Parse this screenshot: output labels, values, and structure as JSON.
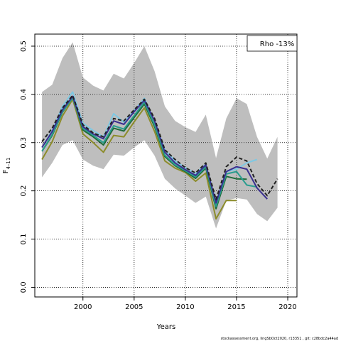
{
  "chart_data": {
    "type": "line",
    "xlabel": "Years",
    "ylabel_main": "F",
    "ylabel_sub": "4–11",
    "xlim": [
      1995.3,
      2020.9
    ],
    "ylim": [
      -0.02,
      0.525
    ],
    "xticks": [
      2000,
      2005,
      2010,
      2015,
      2020
    ],
    "yticks": [
      0.0,
      0.1,
      0.2,
      0.3,
      0.4,
      0.5
    ],
    "ytick_labels": [
      "0.0",
      "0.1",
      "0.2",
      "0.3",
      "0.4",
      "0.5"
    ],
    "grid": true,
    "grid_style": "dotted",
    "legend_placement": "top-right",
    "legend_text": "Rho -13%",
    "footer_text": "stockassessment.org, lingSbOct2020, r13351 , git: c28bdc2a44ad",
    "colors": {
      "band": "#bebebe",
      "full": "#222222",
      "peel1": "#3a2f8f",
      "peel2": "#2a9d8f",
      "peel3": "#1f6b3a",
      "peel4": "#8c8c2a",
      "peel5": "#7ec8e3"
    },
    "band": {
      "x": [
        1996,
        1997,
        1998,
        1999,
        2000,
        2001,
        2002,
        2003,
        2004,
        2005,
        2006,
        2007,
        2008,
        2009,
        2010,
        2011,
        2012,
        2013,
        2014,
        2015,
        2016,
        2017,
        2018,
        2019
      ],
      "upper": [
        0.405,
        0.42,
        0.475,
        0.508,
        0.435,
        0.418,
        0.408,
        0.443,
        0.433,
        0.465,
        0.5,
        0.448,
        0.375,
        0.345,
        0.332,
        0.322,
        0.358,
        0.268,
        0.35,
        0.392,
        0.38,
        0.312,
        0.267,
        0.312
      ],
      "lower": [
        0.228,
        0.258,
        0.295,
        0.305,
        0.265,
        0.252,
        0.245,
        0.275,
        0.273,
        0.29,
        0.305,
        0.273,
        0.225,
        0.205,
        0.19,
        0.175,
        0.188,
        0.122,
        0.18,
        0.185,
        0.182,
        0.152,
        0.137,
        0.165
      ]
    },
    "series": [
      {
        "key": "full",
        "style": "dashed",
        "x": [
          1996,
          1997,
          1998,
          1999,
          2000,
          2001,
          2002,
          2003,
          2004,
          2005,
          2006,
          2007,
          2008,
          2009,
          2010,
          2011,
          2012,
          2013,
          2014,
          2015,
          2016,
          2017,
          2018,
          2019
        ],
        "values": [
          0.302,
          0.33,
          0.372,
          0.398,
          0.337,
          0.32,
          0.312,
          0.35,
          0.345,
          0.368,
          0.39,
          0.35,
          0.285,
          0.265,
          0.248,
          0.237,
          0.258,
          0.182,
          0.25,
          0.27,
          0.262,
          0.215,
          0.19,
          0.225
        ]
      },
      {
        "key": "peel1",
        "style": "solid",
        "x": [
          1996,
          1997,
          1998,
          1999,
          2000,
          2001,
          2002,
          2003,
          2004,
          2005,
          2006,
          2007,
          2008,
          2009,
          2010,
          2011,
          2012,
          2013,
          2014,
          2015,
          2016,
          2017,
          2018
        ],
        "values": [
          0.29,
          0.323,
          0.368,
          0.396,
          0.333,
          0.318,
          0.308,
          0.345,
          0.338,
          0.364,
          0.388,
          0.345,
          0.28,
          0.258,
          0.244,
          0.232,
          0.254,
          0.175,
          0.24,
          0.25,
          0.245,
          0.206,
          0.183
        ]
      },
      {
        "key": "peel2",
        "style": "solid",
        "x": [
          1996,
          1997,
          1998,
          1999,
          2000,
          2001,
          2002,
          2003,
          2004,
          2005,
          2006,
          2007,
          2008,
          2009,
          2010,
          2011,
          2012,
          2013,
          2014,
          2015,
          2016,
          2017
        ],
        "values": [
          0.282,
          0.317,
          0.364,
          0.393,
          0.33,
          0.315,
          0.3,
          0.335,
          0.328,
          0.356,
          0.384,
          0.337,
          0.274,
          0.254,
          0.242,
          0.229,
          0.25,
          0.168,
          0.235,
          0.24,
          0.212,
          0.208
        ]
      },
      {
        "key": "peel3",
        "style": "solid",
        "x": [
          1996,
          1997,
          1998,
          1999,
          2000,
          2001,
          2002,
          2003,
          2004,
          2005,
          2006,
          2007,
          2008,
          2009,
          2010,
          2011,
          2012,
          2013,
          2014,
          2015,
          2016
        ],
        "values": [
          0.282,
          0.315,
          0.363,
          0.394,
          0.326,
          0.312,
          0.295,
          0.33,
          0.324,
          0.352,
          0.38,
          0.333,
          0.271,
          0.252,
          0.24,
          0.226,
          0.247,
          0.163,
          0.23,
          0.225,
          0.224
        ]
      },
      {
        "key": "peel4",
        "style": "solid",
        "x": [
          1996,
          1997,
          1998,
          1999,
          2000,
          2001,
          2002,
          2003,
          2004,
          2005,
          2006,
          2007,
          2008,
          2009,
          2010,
          2011,
          2012,
          2013,
          2014,
          2015
        ],
        "values": [
          0.265,
          0.302,
          0.355,
          0.39,
          0.318,
          0.3,
          0.28,
          0.315,
          0.312,
          0.343,
          0.372,
          0.323,
          0.262,
          0.247,
          0.238,
          0.22,
          0.237,
          0.142,
          0.18,
          0.18
        ]
      },
      {
        "key": "peel5",
        "style": "solid",
        "x": [
          1996,
          1997,
          1998,
          1999,
          2000,
          2001,
          2002,
          2003,
          2004,
          2005,
          2006,
          2007,
          2008,
          2009,
          2010,
          2011,
          2012,
          2013,
          2014,
          2015,
          2016,
          2017
        ],
        "values": [
          0.29,
          0.325,
          0.375,
          0.405,
          0.34,
          0.325,
          0.312,
          0.36,
          0.342,
          0.366,
          0.392,
          0.345,
          0.285,
          0.262,
          0.248,
          0.236,
          0.255,
          0.178,
          0.24,
          0.245,
          0.258,
          0.265
        ]
      }
    ]
  }
}
